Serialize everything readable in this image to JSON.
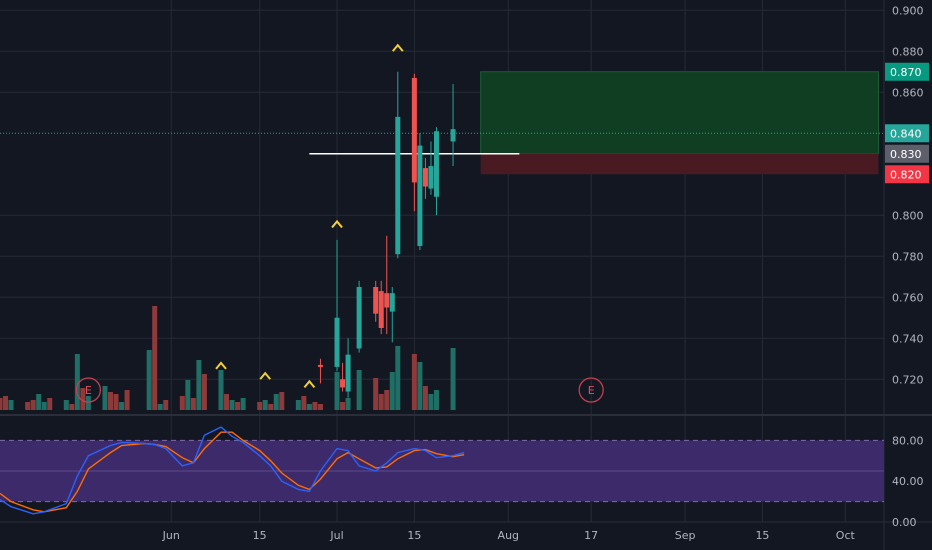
{
  "colors": {
    "background": "#131722",
    "grid": "#262a35",
    "up": "#26a69a",
    "down": "#ef5350",
    "vol_up": "#1f6f66",
    "vol_down": "#8e3a3a",
    "stoch_k": "#2962ff",
    "stoch_d": "#ff6d00",
    "stoch_band": "#3d2a6b",
    "marker": "#f5d033",
    "profit_zone": "#0f3e22",
    "loss_zone": "#4a1a22",
    "entry_line": "#ffffff",
    "current_price_line": "#26a69a"
  },
  "price_axis": {
    "ticks": [
      "0.900",
      "0.880",
      "0.860",
      "0.840",
      "0.830",
      "0.820",
      "0.800",
      "0.780",
      "0.760",
      "0.740",
      "0.720"
    ],
    "regular_ticks": [
      0.9,
      0.88,
      0.86,
      0.8,
      0.78,
      0.76,
      0.74,
      0.72
    ]
  },
  "tags": [
    {
      "name": "target-price-tag",
      "value": 0.87,
      "label": "0.870",
      "color": "#089981"
    },
    {
      "name": "current-price-tag",
      "value": 0.84,
      "label": "0.840",
      "color": "#26a69a"
    },
    {
      "name": "entry-price-tag",
      "value": 0.83,
      "label": "0.830",
      "color": "#5d606b"
    },
    {
      "name": "stop-price-tag",
      "value": 0.82,
      "label": "0.820",
      "color": "#f23645"
    }
  ],
  "osc_axis": {
    "ticks": [
      "80.00",
      "40.00",
      "0.00"
    ],
    "values": [
      80,
      40,
      0
    ],
    "band": [
      20,
      80
    ]
  },
  "time_axis": {
    "labels": [
      {
        "label": "Jun",
        "x": "2019-06-01"
      },
      {
        "label": "15",
        "x": "2019-06-17"
      },
      {
        "label": "Jul",
        "x": "2019-07-01"
      },
      {
        "label": "15",
        "x": "2019-07-15"
      },
      {
        "label": "Aug",
        "x": "2019-08-01"
      },
      {
        "label": "17",
        "x": "2019-08-16"
      },
      {
        "label": "Sep",
        "x": "2019-09-02"
      },
      {
        "label": "15",
        "x": "2019-09-16"
      },
      {
        "label": "Oct",
        "x": "2019-10-01"
      }
    ]
  },
  "earnings": [
    {
      "label": "E",
      "x": "2019-05-17"
    },
    {
      "label": "E",
      "x": "2019-08-16"
    }
  ],
  "chart_data": {
    "type": "candlestick",
    "x_range": [
      "2019-05-01",
      "2019-10-08"
    ],
    "y_range": [
      0.705,
      0.905
    ],
    "volume_max": 100,
    "candles": [
      {
        "x": "2019-06-28",
        "o": 0.727,
        "h": 0.73,
        "l": 0.718,
        "c": 0.726,
        "v": 3
      },
      {
        "x": "2019-07-01",
        "o": 0.726,
        "h": 0.788,
        "l": 0.724,
        "c": 0.75,
        "v": 19
      },
      {
        "x": "2019-07-02",
        "o": 0.72,
        "h": 0.728,
        "l": 0.714,
        "c": 0.716,
        "v": 4
      },
      {
        "x": "2019-07-03",
        "o": 0.714,
        "h": 0.74,
        "l": 0.711,
        "c": 0.732,
        "v": 6
      },
      {
        "x": "2019-07-05",
        "o": 0.735,
        "h": 0.768,
        "l": 0.733,
        "c": 0.765,
        "v": 20
      },
      {
        "x": "2019-07-08",
        "o": 0.765,
        "h": 0.768,
        "l": 0.748,
        "c": 0.752,
        "v": 16
      },
      {
        "x": "2019-07-09",
        "o": 0.763,
        "h": 0.768,
        "l": 0.742,
        "c": 0.745,
        "v": 8
      },
      {
        "x": "2019-07-10",
        "o": 0.762,
        "h": 0.79,
        "l": 0.742,
        "c": 0.755,
        "v": 10
      },
      {
        "x": "2019-07-11",
        "o": 0.753,
        "h": 0.765,
        "l": 0.738,
        "c": 0.762,
        "v": 19
      },
      {
        "x": "2019-07-12",
        "o": 0.781,
        "h": 0.87,
        "l": 0.779,
        "c": 0.848,
        "v": 32
      },
      {
        "x": "2019-07-15",
        "o": 0.867,
        "h": 0.869,
        "l": 0.802,
        "c": 0.816,
        "v": 28
      },
      {
        "x": "2019-07-16",
        "o": 0.785,
        "h": 0.84,
        "l": 0.783,
        "c": 0.834,
        "v": 24
      },
      {
        "x": "2019-07-17",
        "o": 0.823,
        "h": 0.828,
        "l": 0.808,
        "c": 0.814,
        "v": 12
      },
      {
        "x": "2019-07-18",
        "o": 0.813,
        "h": 0.836,
        "l": 0.81,
        "c": 0.824,
        "v": 8
      },
      {
        "x": "2019-07-19",
        "o": 0.809,
        "h": 0.843,
        "l": 0.8,
        "c": 0.841,
        "v": 10
      },
      {
        "x": "2019-07-22",
        "o": 0.836,
        "h": 0.864,
        "l": 0.824,
        "c": 0.842,
        "v": 31
      }
    ],
    "volume_history": [
      {
        "x": "2019-05-01",
        "v": 6,
        "up": false
      },
      {
        "x": "2019-05-02",
        "v": 7,
        "up": false
      },
      {
        "x": "2019-05-03",
        "v": 5,
        "up": true
      },
      {
        "x": "2019-05-06",
        "v": 4,
        "up": false
      },
      {
        "x": "2019-05-07",
        "v": 5,
        "up": false
      },
      {
        "x": "2019-05-08",
        "v": 8,
        "up": true
      },
      {
        "x": "2019-05-09",
        "v": 4,
        "up": true
      },
      {
        "x": "2019-05-10",
        "v": 6,
        "up": false
      },
      {
        "x": "2019-05-13",
        "v": 5,
        "up": true
      },
      {
        "x": "2019-05-14",
        "v": 3,
        "up": false
      },
      {
        "x": "2019-05-15",
        "v": 28,
        "up": true
      },
      {
        "x": "2019-05-16",
        "v": 11,
        "up": false
      },
      {
        "x": "2019-05-17",
        "v": 7,
        "up": true
      },
      {
        "x": "2019-05-20",
        "v": 12,
        "up": true
      },
      {
        "x": "2019-05-21",
        "v": 9,
        "up": false
      },
      {
        "x": "2019-05-22",
        "v": 8,
        "up": false
      },
      {
        "x": "2019-05-23",
        "v": 4,
        "up": true
      },
      {
        "x": "2019-05-24",
        "v": 10,
        "up": false
      },
      {
        "x": "2019-05-28",
        "v": 30,
        "up": true
      },
      {
        "x": "2019-05-29",
        "v": 52,
        "up": false
      },
      {
        "x": "2019-05-30",
        "v": 3,
        "up": true
      },
      {
        "x": "2019-05-31",
        "v": 5,
        "up": false
      },
      {
        "x": "2019-06-03",
        "v": 7,
        "up": false
      },
      {
        "x": "2019-06-04",
        "v": 15,
        "up": true
      },
      {
        "x": "2019-06-05",
        "v": 6,
        "up": false
      },
      {
        "x": "2019-06-06",
        "v": 25,
        "up": true
      },
      {
        "x": "2019-06-07",
        "v": 18,
        "up": false
      },
      {
        "x": "2019-06-10",
        "v": 20,
        "up": true
      },
      {
        "x": "2019-06-11",
        "v": 8,
        "up": false
      },
      {
        "x": "2019-06-12",
        "v": 5,
        "up": true
      },
      {
        "x": "2019-06-13",
        "v": 4,
        "up": false
      },
      {
        "x": "2019-06-14",
        "v": 6,
        "up": true
      },
      {
        "x": "2019-06-17",
        "v": 4,
        "up": false
      },
      {
        "x": "2019-06-18",
        "v": 5,
        "up": true
      },
      {
        "x": "2019-06-19",
        "v": 3,
        "up": false
      },
      {
        "x": "2019-06-20",
        "v": 8,
        "up": true
      },
      {
        "x": "2019-06-21",
        "v": 9,
        "up": false
      },
      {
        "x": "2019-06-24",
        "v": 5,
        "up": true
      },
      {
        "x": "2019-06-25",
        "v": 7,
        "up": false
      },
      {
        "x": "2019-06-26",
        "v": 3,
        "up": true
      },
      {
        "x": "2019-06-27",
        "v": 4,
        "up": false
      }
    ],
    "pivot_markers": [
      {
        "x": "2019-06-10",
        "y": 0.727
      },
      {
        "x": "2019-06-18",
        "y": 0.722
      },
      {
        "x": "2019-06-26",
        "y": 0.718
      },
      {
        "x": "2019-07-01",
        "y": 0.796
      },
      {
        "x": "2019-07-12",
        "y": 0.882
      }
    ],
    "position": {
      "x_start": "2019-07-27",
      "x_end": "2019-10-07",
      "entry": 0.83,
      "target": 0.87,
      "stop": 0.82,
      "entry_line_start": "2019-06-26",
      "entry_line_end": "2019-08-03"
    },
    "current_price": 0.84,
    "stochastic": {
      "ylim": [
        0,
        100
      ],
      "k": [
        [
          "2019-05-01",
          22
        ],
        [
          "2019-05-03",
          15
        ],
        [
          "2019-05-07",
          8
        ],
        [
          "2019-05-09",
          10
        ],
        [
          "2019-05-13",
          18
        ],
        [
          "2019-05-15",
          45
        ],
        [
          "2019-05-17",
          65
        ],
        [
          "2019-05-21",
          75
        ],
        [
          "2019-05-23",
          78
        ],
        [
          "2019-05-27",
          77
        ],
        [
          "2019-05-29",
          76
        ],
        [
          "2019-05-31",
          72
        ],
        [
          "2019-06-03",
          55
        ],
        [
          "2019-06-05",
          58
        ],
        [
          "2019-06-07",
          85
        ],
        [
          "2019-06-10",
          93
        ],
        [
          "2019-06-12",
          84
        ],
        [
          "2019-06-14",
          78
        ],
        [
          "2019-06-17",
          65
        ],
        [
          "2019-06-19",
          55
        ],
        [
          "2019-06-21",
          40
        ],
        [
          "2019-06-24",
          32
        ],
        [
          "2019-06-26",
          30
        ],
        [
          "2019-06-28",
          50
        ],
        [
          "2019-07-01",
          72
        ],
        [
          "2019-07-03",
          70
        ],
        [
          "2019-07-05",
          55
        ],
        [
          "2019-07-08",
          50
        ],
        [
          "2019-07-10",
          58
        ],
        [
          "2019-07-12",
          68
        ],
        [
          "2019-07-15",
          72
        ],
        [
          "2019-07-17",
          70
        ],
        [
          "2019-07-19",
          63
        ],
        [
          "2019-07-22",
          65
        ],
        [
          "2019-07-24",
          68
        ]
      ],
      "d": [
        [
          "2019-05-01",
          28
        ],
        [
          "2019-05-03",
          20
        ],
        [
          "2019-05-07",
          12
        ],
        [
          "2019-05-09",
          10
        ],
        [
          "2019-05-13",
          14
        ],
        [
          "2019-05-15",
          30
        ],
        [
          "2019-05-17",
          52
        ],
        [
          "2019-05-21",
          68
        ],
        [
          "2019-05-23",
          75
        ],
        [
          "2019-05-27",
          77
        ],
        [
          "2019-05-29",
          76
        ],
        [
          "2019-05-31",
          74
        ],
        [
          "2019-06-03",
          63
        ],
        [
          "2019-06-05",
          58
        ],
        [
          "2019-06-07",
          72
        ],
        [
          "2019-06-10",
          88
        ],
        [
          "2019-06-12",
          88
        ],
        [
          "2019-06-14",
          80
        ],
        [
          "2019-06-17",
          70
        ],
        [
          "2019-06-19",
          60
        ],
        [
          "2019-06-21",
          48
        ],
        [
          "2019-06-24",
          36
        ],
        [
          "2019-06-26",
          32
        ],
        [
          "2019-06-28",
          42
        ],
        [
          "2019-07-01",
          62
        ],
        [
          "2019-07-03",
          68
        ],
        [
          "2019-07-05",
          62
        ],
        [
          "2019-07-08",
          53
        ],
        [
          "2019-07-10",
          54
        ],
        [
          "2019-07-12",
          62
        ],
        [
          "2019-07-15",
          70
        ],
        [
          "2019-07-17",
          71
        ],
        [
          "2019-07-19",
          67
        ],
        [
          "2019-07-22",
          64
        ],
        [
          "2019-07-24",
          66
        ]
      ]
    }
  }
}
